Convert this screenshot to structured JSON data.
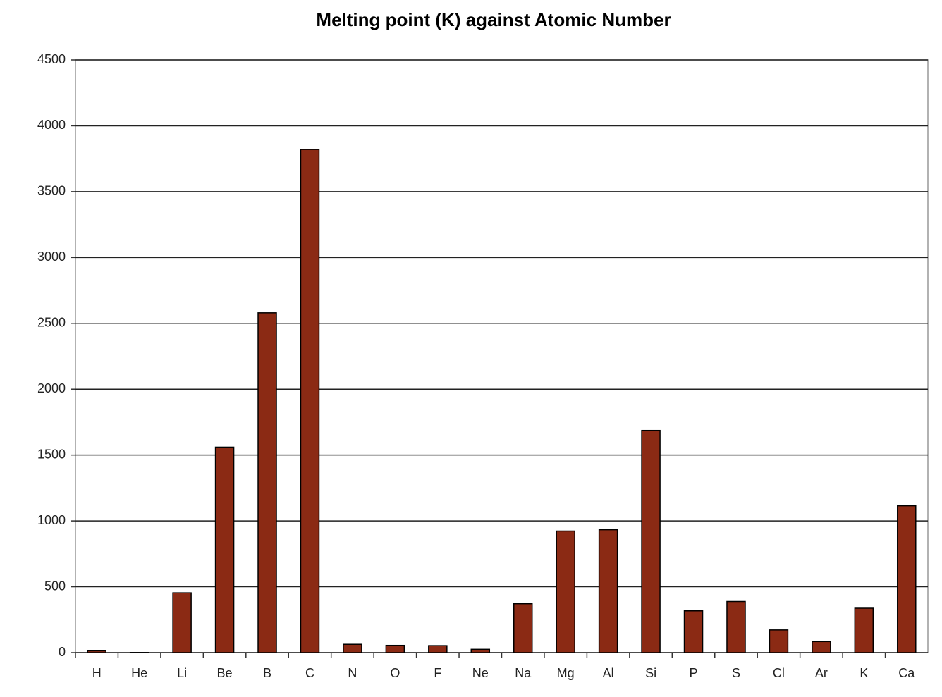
{
  "chart_data": {
    "type": "bar",
    "title": "Melting point (K) against Atomic Number",
    "categories": [
      "H",
      "He",
      "Li",
      "Be",
      "B",
      "C",
      "N",
      "O",
      "F",
      "Ne",
      "Na",
      "Mg",
      "Al",
      "Si",
      "P",
      "S",
      "Cl",
      "Ar",
      "K",
      "Ca"
    ],
    "values": [
      14,
      1,
      454,
      1560,
      2580,
      3820,
      63,
      55,
      53,
      25,
      371,
      923,
      933,
      1687,
      317,
      388,
      172,
      84,
      337,
      1115
    ],
    "color": "#8b2a14",
    "ylim": [
      0,
      4500
    ],
    "yticks": [
      0,
      500,
      1000,
      1500,
      2000,
      2500,
      3000,
      3500,
      4000,
      4500
    ],
    "grid": true
  }
}
